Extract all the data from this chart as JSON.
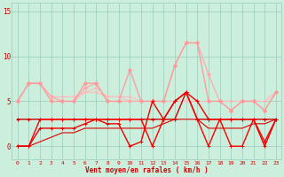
{
  "x": [
    0,
    1,
    2,
    3,
    4,
    5,
    6,
    7,
    8,
    9,
    10,
    11,
    12,
    13,
    14,
    15,
    16,
    17,
    18,
    19,
    20,
    21,
    22,
    23
  ],
  "lines": [
    {
      "y": [
        5.0,
        7.0,
        7.0,
        5.5,
        5.5,
        5.5,
        6.0,
        6.0,
        5.5,
        5.5,
        5.5,
        5.0,
        5.0,
        5.0,
        5.0,
        5.0,
        5.0,
        5.0,
        5.0,
        5.0,
        5.0,
        5.0,
        5.0,
        6.0
      ],
      "color": "#ffbbbb",
      "lw": 0.8,
      "marker": "D",
      "ms": 1.5
    },
    {
      "y": [
        5.0,
        7.0,
        7.0,
        5.5,
        5.0,
        5.0,
        6.0,
        6.5,
        5.5,
        5.5,
        5.0,
        5.0,
        5.0,
        5.0,
        5.0,
        5.0,
        5.0,
        5.0,
        5.0,
        5.0,
        5.0,
        5.0,
        5.0,
        6.0
      ],
      "color": "#ffbbbb",
      "lw": 0.8,
      "marker": "D",
      "ms": 1.5
    },
    {
      "y": [
        5.0,
        7.0,
        7.0,
        5.5,
        5.0,
        5.0,
        6.5,
        7.0,
        5.0,
        5.0,
        5.0,
        5.0,
        5.0,
        5.0,
        9.0,
        11.5,
        11.5,
        8.0,
        5.0,
        4.0,
        5.0,
        5.0,
        4.0,
        6.0
      ],
      "color": "#ffaaaa",
      "lw": 0.9,
      "marker": "D",
      "ms": 2.0
    },
    {
      "y": [
        5.0,
        7.0,
        7.0,
        5.0,
        5.0,
        5.0,
        7.0,
        7.0,
        5.0,
        5.0,
        8.5,
        5.0,
        5.0,
        5.0,
        9.0,
        11.5,
        11.5,
        5.0,
        5.0,
        4.0,
        5.0,
        5.0,
        4.0,
        6.0
      ],
      "color": "#ff9999",
      "lw": 0.9,
      "marker": "D",
      "ms": 2.0
    },
    {
      "y": [
        3.0,
        3.0,
        3.0,
        3.0,
        3.0,
        3.0,
        3.0,
        3.0,
        3.0,
        3.0,
        3.0,
        3.0,
        3.0,
        3.0,
        3.0,
        6.0,
        3.0,
        3.0,
        3.0,
        3.0,
        3.0,
        3.0,
        3.0,
        3.0
      ],
      "color": "#cc0000",
      "lw": 1.0,
      "marker": "+",
      "ms": 3.5
    },
    {
      "y": [
        0.0,
        0.0,
        3.0,
        3.0,
        3.0,
        3.0,
        3.0,
        3.0,
        3.0,
        3.0,
        3.0,
        3.0,
        0.0,
        3.0,
        5.0,
        6.0,
        3.0,
        0.0,
        3.0,
        0.0,
        0.0,
        3.0,
        0.5,
        3.0
      ],
      "color": "#ff0000",
      "lw": 1.0,
      "marker": "+",
      "ms": 3.5
    },
    {
      "y": [
        0.0,
        0.0,
        2.0,
        2.0,
        2.0,
        2.0,
        2.5,
        3.0,
        2.5,
        2.5,
        0.0,
        0.5,
        5.0,
        3.0,
        5.0,
        6.0,
        5.0,
        3.0,
        3.0,
        3.0,
        3.0,
        3.0,
        0.0,
        3.0
      ],
      "color": "#ee0000",
      "lw": 1.0,
      "marker": "+",
      "ms": 3.5
    },
    {
      "y": [
        0.0,
        0.0,
        0.5,
        1.0,
        1.5,
        1.5,
        2.0,
        2.0,
        2.0,
        2.0,
        2.0,
        2.0,
        2.0,
        2.5,
        3.0,
        3.0,
        3.0,
        2.0,
        2.0,
        2.0,
        2.0,
        2.5,
        2.5,
        3.0
      ],
      "color": "#dd0000",
      "lw": 0.8,
      "marker": null,
      "ms": 0
    }
  ],
  "bg_color": "#cceedd",
  "grid_color": "#99ccbb",
  "text_color": "#cc0000",
  "xlabel": "Vent moyen/en rafales ( km/h )",
  "xlim": [
    -0.5,
    23.5
  ],
  "ylim": [
    -1.5,
    16
  ],
  "yticks": [
    0,
    5,
    10,
    15
  ],
  "xticks": [
    0,
    1,
    2,
    3,
    4,
    5,
    6,
    7,
    8,
    9,
    10,
    11,
    12,
    13,
    14,
    15,
    16,
    17,
    18,
    19,
    20,
    21,
    22,
    23
  ]
}
